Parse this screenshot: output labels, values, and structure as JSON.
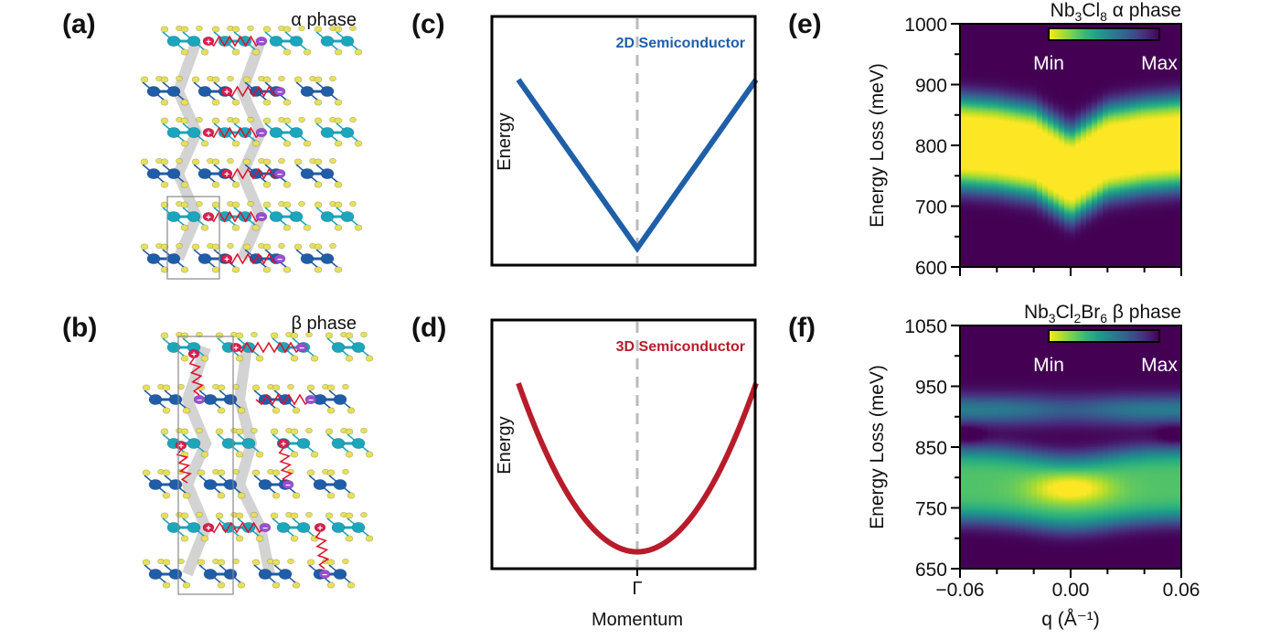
{
  "panels": {
    "a": "(a)",
    "b": "(b)",
    "c": "(c)",
    "d": "(d)",
    "e": "(e)",
    "f": "(f)"
  },
  "structures": {
    "alpha_label": "α phase",
    "beta_label": "β phase",
    "colors": {
      "nb_teal": "#1aa6bd",
      "nb_blue": "#1f5da8",
      "cl": "#e6e05a",
      "plus": "#d62050",
      "minus": "#9a4fd0",
      "spring": "#e0102a",
      "bar": "#c8c8c8"
    }
  },
  "chart_data": [
    {
      "id": "c",
      "type": "line",
      "title": "2D Semiconductor",
      "title_color": "#1f5fa8",
      "ylabel": "Energy",
      "xlabel": "",
      "shape": "V (linear dispersion)",
      "x": [
        -1,
        0,
        1
      ],
      "y": [
        0.8,
        0,
        0.8
      ],
      "ylim": [
        -0.08,
        1.1
      ],
      "center_line": "dashed"
    },
    {
      "id": "d",
      "type": "line",
      "title": "3D Semiconductor",
      "title_color": "#b81c2a",
      "ylabel": "Energy",
      "xlabel": "Momentum",
      "xtick": "Γ",
      "shape": "parabola",
      "x": [
        -1,
        -0.5,
        0,
        0.5,
        1
      ],
      "y": [
        0.8,
        0.2,
        0,
        0.2,
        0.8
      ],
      "ylim": [
        -0.08,
        1.1
      ],
      "center_line": "dashed"
    },
    {
      "id": "e",
      "type": "heatmap",
      "title_parts": [
        "Nb",
        "3",
        "Cl",
        "8",
        " α phase"
      ],
      "ylabel": "Energy Loss (meV)",
      "xlabel": "",
      "xlim": [
        -0.06,
        0.06
      ],
      "ylim": [
        600,
        1000
      ],
      "yticks": [
        "600",
        "700",
        "800",
        "900",
        "1000"
      ],
      "colorbar": {
        "min_label": "Min",
        "max_label": "Max",
        "colormap": "viridis_r"
      },
      "band_center_meV": {
        "q": [
          -0.06,
          -0.04,
          -0.02,
          0.0,
          0.02,
          0.04,
          0.06
        ],
        "E": [
          805,
          800,
          790,
          752,
          790,
          800,
          805
        ]
      },
      "band_halfwidth_meV": 75
    },
    {
      "id": "f",
      "type": "heatmap",
      "title_parts": [
        "Nb",
        "3",
        "Cl",
        "2",
        "Br",
        "6",
        " β phase"
      ],
      "ylabel": "Energy Loss (meV)",
      "xlabel": "q (Å⁻¹)",
      "xlim": [
        -0.06,
        0.06
      ],
      "ylim": [
        650,
        1050
      ],
      "yticks": [
        "650",
        "750",
        "850",
        "950",
        "1050"
      ],
      "xticks": [
        "−0.06",
        "0.00",
        "0.06"
      ],
      "colorbar": {
        "min_label": "Min",
        "max_label": "Max",
        "colormap": "viridis_r"
      },
      "features": [
        {
          "name": "main band",
          "E_center_meV": 790,
          "q0_shift_meV": -15
        },
        {
          "name": "peak",
          "q": 0.0,
          "E_meV": 780
        },
        {
          "name": "upper band",
          "E_meV": 910
        }
      ]
    }
  ]
}
